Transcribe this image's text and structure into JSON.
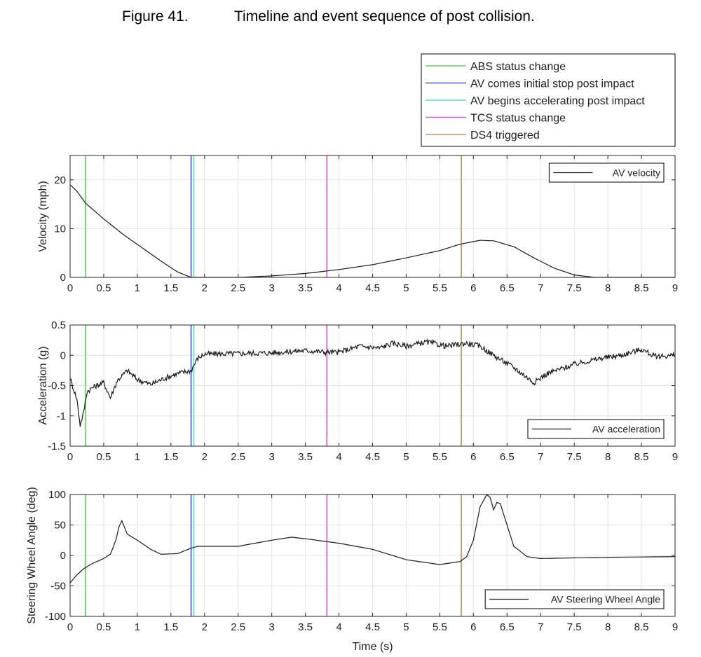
{
  "figure": {
    "label": "Figure 41.",
    "caption": "Timeline and event sequence of post collision."
  },
  "events": [
    {
      "name": "ABS status change",
      "time": 0.23,
      "color": "#5fd35f"
    },
    {
      "name": "AV comes initial stop post impact",
      "time": 1.8,
      "color": "#4d5fd0"
    },
    {
      "name": "AV begins accelerating post impact",
      "time": 1.84,
      "color": "#5fd8e8"
    },
    {
      "name": "TCS status change",
      "time": 3.82,
      "color": "#d65fd6"
    },
    {
      "name": "DS4 triggered",
      "time": 5.82,
      "color": "#c9915a"
    }
  ],
  "chart_data": [
    {
      "type": "line",
      "ylabel": "Velocity (mph)",
      "xlabel": "",
      "xlim": [
        0,
        9
      ],
      "ylim": [
        0,
        25
      ],
      "xticks": [
        0,
        0.5,
        1,
        1.5,
        2,
        2.5,
        3,
        3.5,
        4,
        4.5,
        5,
        5.5,
        6,
        6.5,
        7,
        7.5,
        8,
        8.5,
        9
      ],
      "yticks": [
        0,
        10,
        20
      ],
      "grid": true,
      "legend_position": "top-right",
      "series": [
        {
          "name": "AV velocity",
          "color": "#1a1a1a",
          "noise": 0,
          "points": [
            [
              0,
              19
            ],
            [
              0.1,
              17.7
            ],
            [
              0.23,
              15.2
            ],
            [
              0.5,
              12
            ],
            [
              0.8,
              8.7
            ],
            [
              1.1,
              5.8
            ],
            [
              1.4,
              2.9
            ],
            [
              1.6,
              1.1
            ],
            [
              1.8,
              0
            ],
            [
              2.5,
              0
            ],
            [
              3,
              0.3
            ],
            [
              3.5,
              0.8
            ],
            [
              4,
              1.6
            ],
            [
              4.5,
              2.6
            ],
            [
              5,
              4
            ],
            [
              5.5,
              5.5
            ],
            [
              5.8,
              6.8
            ],
            [
              6.1,
              7.6
            ],
            [
              6.3,
              7.5
            ],
            [
              6.6,
              6.3
            ],
            [
              6.9,
              4
            ],
            [
              7.2,
              1.9
            ],
            [
              7.5,
              0.5
            ],
            [
              7.8,
              0
            ],
            [
              9,
              0
            ]
          ]
        }
      ]
    },
    {
      "type": "line",
      "ylabel": "Acceleration (g)",
      "xlabel": "",
      "xlim": [
        0,
        9
      ],
      "ylim": [
        -1.5,
        0.5
      ],
      "xticks": [
        0,
        0.5,
        1,
        1.5,
        2,
        2.5,
        3,
        3.5,
        4,
        4.5,
        5,
        5.5,
        6,
        6.5,
        7,
        7.5,
        8,
        8.5,
        9
      ],
      "yticks": [
        -1.5,
        -1,
        -0.5,
        0,
        0.5
      ],
      "grid": true,
      "legend_position": "bottom-right",
      "series": [
        {
          "name": "AV acceleration",
          "color": "#1a1a1a",
          "noise": 0.045,
          "points": [
            [
              0,
              -0.38
            ],
            [
              0.05,
              -0.55
            ],
            [
              0.1,
              -0.72
            ],
            [
              0.15,
              -1.15
            ],
            [
              0.2,
              -0.95
            ],
            [
              0.25,
              -0.6
            ],
            [
              0.35,
              -0.52
            ],
            [
              0.5,
              -0.45
            ],
            [
              0.6,
              -0.7
            ],
            [
              0.7,
              -0.42
            ],
            [
              0.85,
              -0.25
            ],
            [
              1,
              -0.4
            ],
            [
              1.2,
              -0.48
            ],
            [
              1.4,
              -0.38
            ],
            [
              1.6,
              -0.3
            ],
            [
              1.8,
              -0.25
            ],
            [
              1.9,
              -0.05
            ],
            [
              2,
              0.02
            ],
            [
              2.5,
              0.03
            ],
            [
              3,
              0.04
            ],
            [
              3.5,
              0.08
            ],
            [
              3.8,
              0.05
            ],
            [
              4,
              0.05
            ],
            [
              4.3,
              0.15
            ],
            [
              4.6,
              0.12
            ],
            [
              4.8,
              0.2
            ],
            [
              5,
              0.15
            ],
            [
              5.3,
              0.22
            ],
            [
              5.6,
              0.15
            ],
            [
              5.9,
              0.2
            ],
            [
              6.1,
              0.15
            ],
            [
              6.3,
              0
            ],
            [
              6.6,
              -0.2
            ],
            [
              6.9,
              -0.45
            ],
            [
              7.1,
              -0.3
            ],
            [
              7.5,
              -0.15
            ],
            [
              7.9,
              -0.05
            ],
            [
              8.2,
              0
            ],
            [
              8.5,
              0.1
            ],
            [
              8.7,
              -0.02
            ],
            [
              9,
              0
            ]
          ]
        }
      ]
    },
    {
      "type": "line",
      "ylabel": "Steering Wheel Angle (deg)",
      "xlabel": "Time (s)",
      "xlim": [
        0,
        9
      ],
      "ylim": [
        -100,
        100
      ],
      "xticks": [
        0,
        0.5,
        1,
        1.5,
        2,
        2.5,
        3,
        3.5,
        4,
        4.5,
        5,
        5.5,
        6,
        6.5,
        7,
        7.5,
        8,
        8.5,
        9
      ],
      "yticks": [
        -100,
        -50,
        0,
        50,
        100
      ],
      "grid": true,
      "legend_position": "bottom-right",
      "series": [
        {
          "name": "AV Steering Wheel Angle",
          "color": "#1a1a1a",
          "noise": 0,
          "points": [
            [
              0,
              -45
            ],
            [
              0.1,
              -32
            ],
            [
              0.2,
              -22
            ],
            [
              0.3,
              -15
            ],
            [
              0.5,
              -5
            ],
            [
              0.6,
              2
            ],
            [
              0.68,
              25
            ],
            [
              0.73,
              48
            ],
            [
              0.77,
              57
            ],
            [
              0.85,
              35
            ],
            [
              1,
              25
            ],
            [
              1.2,
              10
            ],
            [
              1.35,
              2
            ],
            [
              1.6,
              3
            ],
            [
              1.8,
              12
            ],
            [
              1.9,
              15
            ],
            [
              2.5,
              15
            ],
            [
              3,
              25
            ],
            [
              3.3,
              30
            ],
            [
              3.6,
              26
            ],
            [
              4,
              20
            ],
            [
              4.5,
              10
            ],
            [
              5,
              -7
            ],
            [
              5.5,
              -15
            ],
            [
              5.8,
              -10
            ],
            [
              5.9,
              -2
            ],
            [
              6,
              25
            ],
            [
              6.1,
              80
            ],
            [
              6.2,
              100
            ],
            [
              6.25,
              95
            ],
            [
              6.3,
              75
            ],
            [
              6.35,
              87
            ],
            [
              6.4,
              85
            ],
            [
              6.5,
              50
            ],
            [
              6.6,
              15
            ],
            [
              6.8,
              -2
            ],
            [
              7,
              -5
            ],
            [
              7.5,
              -4
            ],
            [
              8,
              -3
            ],
            [
              9,
              -2
            ]
          ]
        }
      ]
    }
  ]
}
